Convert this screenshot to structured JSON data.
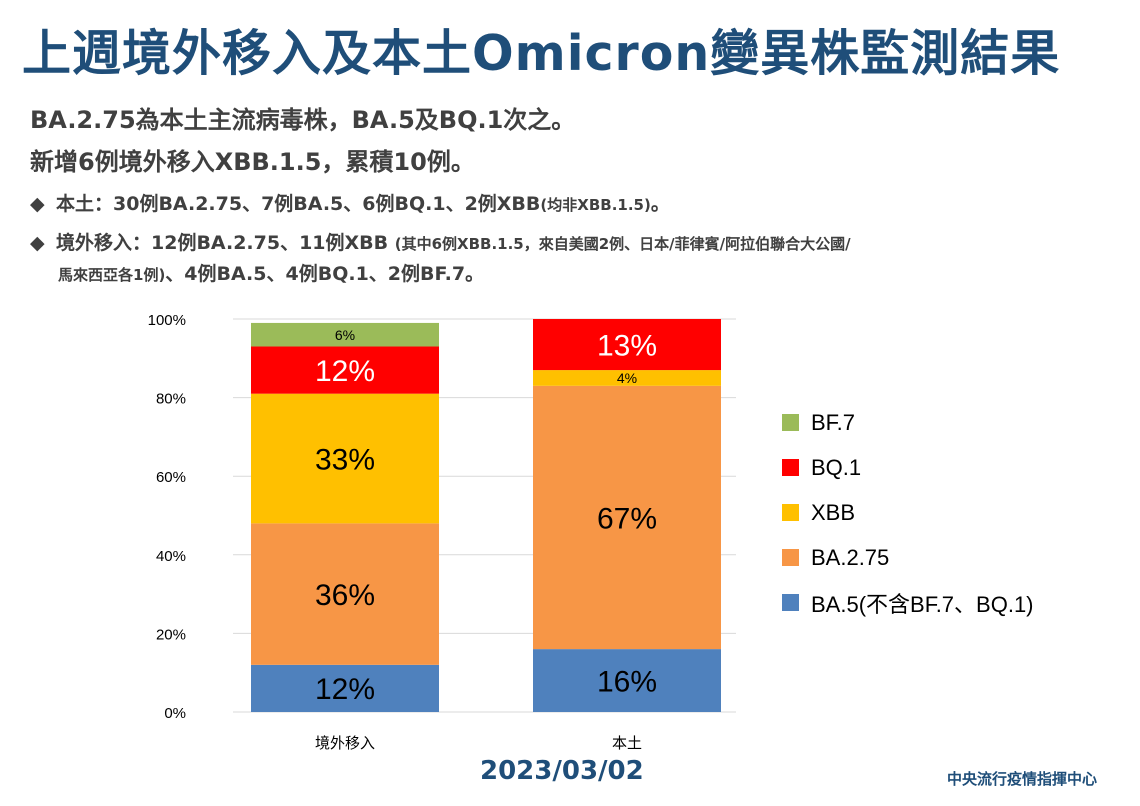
{
  "header": {
    "title": "上週境外移入及本土Omicron變異株監測結果",
    "subtitle_line1": "BA.2.75為本土主流病毒株，BA.5及BQ.1次之。",
    "subtitle_line2": "新增6例境外移入XBB.1.5，累積10例。",
    "bullet_mark": "◆",
    "bullet1_main": "本土：30例BA.2.75、7例BA.5、6例BQ.1、2例XBB",
    "bullet1_small": "(均非XBB.1.5)",
    "bullet1_end": "。",
    "bullet2_main": "境外移入：12例BA.2.75、11例XBB ",
    "bullet2_small": "(其中6例XBB.1.5，來自美國2例、日本/菲律賓/阿拉伯聯合大公國/",
    "bullet2_cont_small": "馬來西亞各1例)",
    "bullet2_cont_main": "、4例BA.5、4例BQ.1、2例BF.7。"
  },
  "chart_data": {
    "type": "bar",
    "stacked": true,
    "percent": true,
    "categories": [
      "境外移入",
      "本土"
    ],
    "yticks": [
      "0%",
      "20%",
      "40%",
      "60%",
      "80%",
      "100%"
    ],
    "ylim": [
      0,
      100
    ],
    "grid": true,
    "legend_position": "right",
    "series": [
      {
        "name": "BA.5(不含BF.7、BQ.1)",
        "color": "#4f81bd",
        "values": [
          12,
          16
        ],
        "labels": [
          "12%",
          "16%"
        ],
        "label_size": "large"
      },
      {
        "name": "BA.2.75",
        "color": "#f79646",
        "values": [
          36,
          67
        ],
        "labels": [
          "36%",
          "67%"
        ],
        "label_size": "large"
      },
      {
        "name": "XBB",
        "color": "#ffc000",
        "values": [
          33,
          4
        ],
        "labels": [
          "33%",
          "4%"
        ],
        "label_size": "mixed"
      },
      {
        "name": "BQ.1",
        "color": "#ff0000",
        "values": [
          12,
          13
        ],
        "labels": [
          "12%",
          "13%"
        ],
        "label_size": "large"
      },
      {
        "name": "BF.7",
        "color": "#9bbb59",
        "values": [
          6,
          0
        ],
        "labels": [
          "6%",
          ""
        ],
        "label_size": "small"
      }
    ]
  },
  "footer": {
    "date": "2023/03/02",
    "org": "中央流行疫情指揮中心"
  }
}
